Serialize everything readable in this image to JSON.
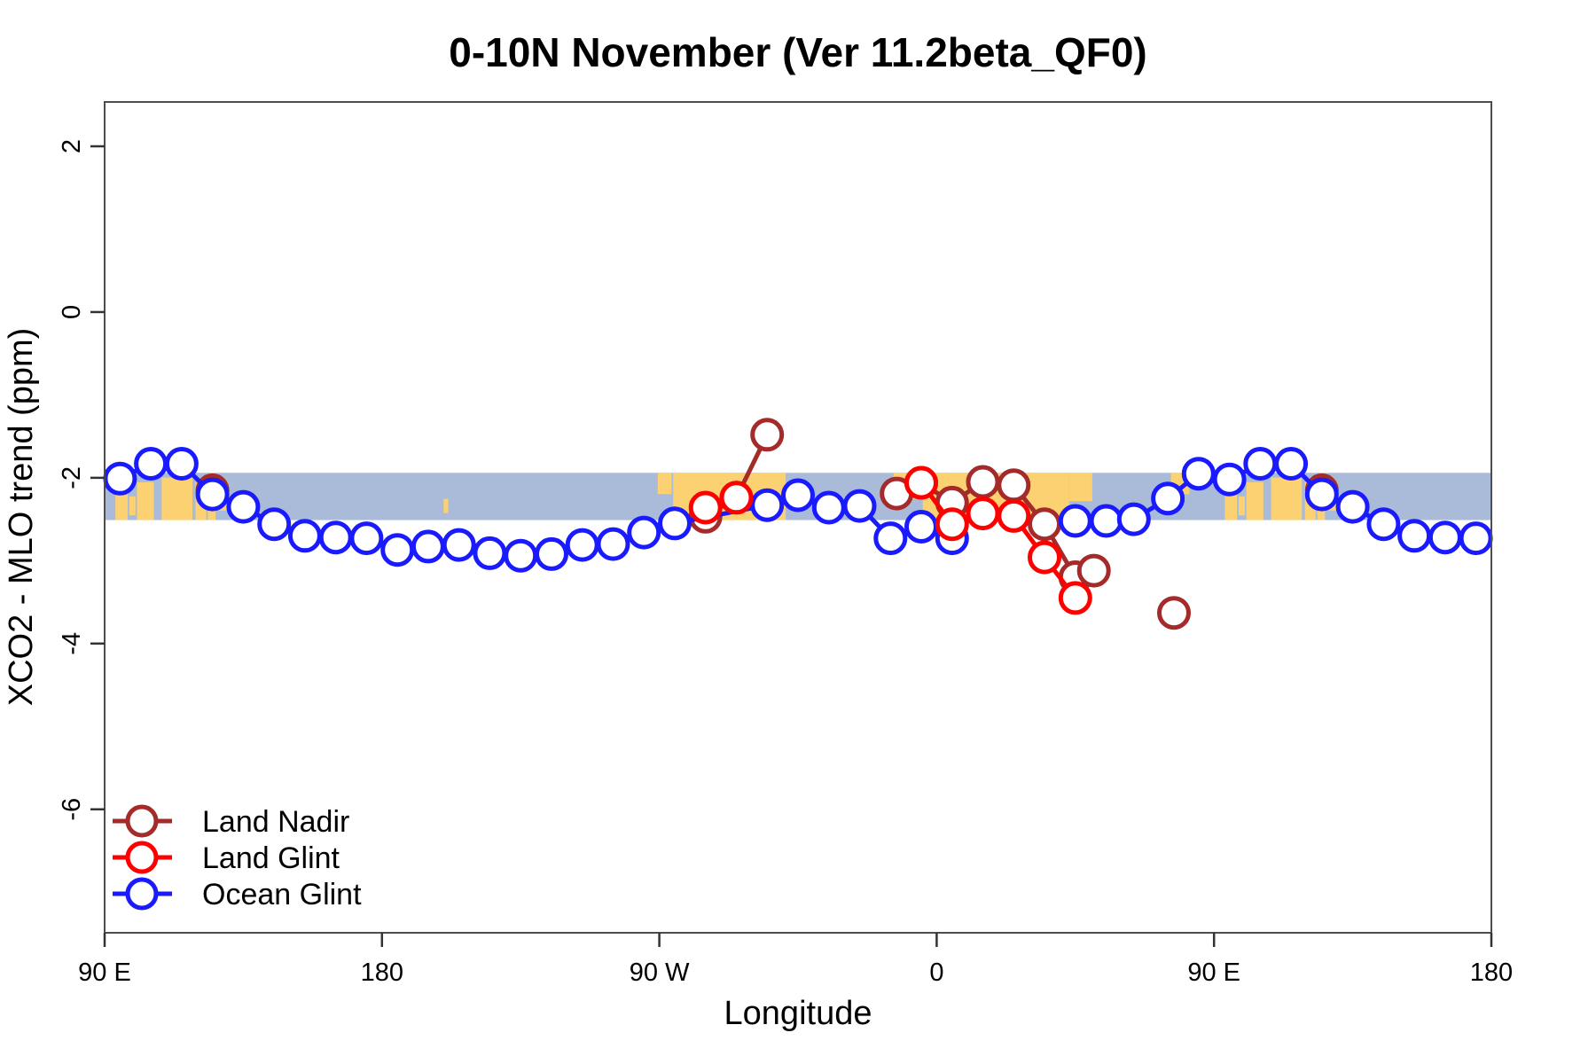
{
  "title": "0-10N November (Ver 11.2beta_QF0)",
  "xlabel": "Longitude",
  "ylabel": "XCO2 - MLO trend (ppm)",
  "chart_data": {
    "type": "line",
    "title": "0-10N November (Ver 11.2beta_QF0)",
    "xlabel": "Longitude",
    "ylabel": "XCO2 - MLO trend (ppm)",
    "xlim": [
      90,
      540
    ],
    "ylim": [
      -7.49,
      2.535
    ],
    "grid": false,
    "legend_position": "bottom-left-inside",
    "x_ticks": [
      {
        "v": 90,
        "label": "90 E"
      },
      {
        "v": 180,
        "label": "180"
      },
      {
        "v": 270,
        "label": "90 W"
      },
      {
        "v": 360,
        "label": "0"
      },
      {
        "v": 450,
        "label": "90 E"
      },
      {
        "v": 540,
        "label": "180"
      }
    ],
    "y_ticks": [
      {
        "v": 2,
        "label": "2"
      },
      {
        "v": 0,
        "label": "0"
      },
      {
        "v": -2,
        "label": "-2"
      },
      {
        "v": -4,
        "label": "-4"
      },
      {
        "v": -6,
        "label": "-6"
      }
    ],
    "map_band": {
      "value_top": -1.94,
      "value_bottom": -2.51,
      "ocean_color": "#A9BBD8",
      "land_color": "#FBD171",
      "land_patches": [
        [
          93.5,
          97.5,
          0.25,
          1
        ],
        [
          98,
          100,
          0.5,
          0.9
        ],
        [
          100.5,
          106,
          0.2,
          1
        ],
        [
          108.5,
          118.5,
          0.1,
          1
        ],
        [
          119.5,
          123,
          0.2,
          1
        ],
        [
          123.5,
          126,
          0.35,
          1
        ],
        [
          127,
          130,
          0.2,
          0.8
        ],
        [
          200,
          201.5,
          0.55,
          0.85
        ],
        [
          269.5,
          274,
          0,
          0.45
        ],
        [
          274.5,
          311,
          0,
          1
        ],
        [
          346,
          356,
          0,
          0.55
        ],
        [
          355.5,
          403,
          0,
          1
        ],
        [
          403,
          410.5,
          0,
          0.6
        ],
        [
          436,
          442,
          0,
          0.45
        ],
        [
          453.5,
          457.5,
          0.25,
          1
        ],
        [
          458,
          460,
          0.5,
          0.9
        ],
        [
          460.5,
          466,
          0.2,
          1
        ],
        [
          468.5,
          478.5,
          0.1,
          1
        ],
        [
          479.5,
          483,
          0.2,
          1
        ],
        [
          483.5,
          486,
          0.35,
          1
        ],
        [
          487,
          490,
          0.2,
          0.8
        ]
      ]
    },
    "series": [
      {
        "name": "Land Nadir",
        "color": "#A52A2A",
        "marker": "circle",
        "z": 0,
        "segments": [
          [
            [
              125,
              -2.15
            ]
          ],
          [
            [
              285,
              -2.47
            ],
            [
              295,
              -2.24
            ],
            [
              305,
              -1.48
            ]
          ],
          [
            [
              347,
              -2.19
            ],
            [
              355,
              -2.06
            ],
            [
              365,
              -2.3
            ],
            [
              375,
              -2.05
            ],
            [
              385,
              -2.09
            ],
            [
              395,
              -2.56
            ],
            [
              405,
              -3.2
            ],
            [
              411,
              -3.12
            ]
          ],
          [
            [
              437,
              -3.63
            ]
          ],
          [
            [
              485,
              -2.15
            ]
          ]
        ]
      },
      {
        "name": "Land Glint",
        "color": "#FF0000",
        "marker": "circle",
        "z": 2,
        "segments": [
          [
            [
              285,
              -2.36
            ],
            [
              295,
              -2.24
            ]
          ],
          [
            [
              355,
              -2.06
            ],
            [
              365,
              -2.56
            ],
            [
              375,
              -2.43
            ],
            [
              385,
              -2.46
            ],
            [
              395,
              -2.96
            ],
            [
              405,
              -3.45
            ]
          ]
        ]
      },
      {
        "name": "Ocean Glint",
        "color": "#1A1AFF",
        "marker": "circle",
        "z": 1,
        "segments": [
          [
            [
              95,
              -2.01
            ],
            [
              105,
              -1.83
            ],
            [
              115,
              -1.83
            ],
            [
              125,
              -2.2
            ],
            [
              135,
              -2.35
            ],
            [
              145,
              -2.56
            ],
            [
              155,
              -2.7
            ],
            [
              165,
              -2.72
            ],
            [
              175,
              -2.73
            ],
            [
              185,
              -2.87
            ],
            [
              195,
              -2.83
            ],
            [
              205,
              -2.81
            ],
            [
              215,
              -2.91
            ],
            [
              225,
              -2.94
            ],
            [
              235,
              -2.92
            ],
            [
              245,
              -2.81
            ],
            [
              255,
              -2.8
            ],
            [
              265,
              -2.66
            ],
            [
              275,
              -2.55
            ],
            [
              305,
              -2.33
            ],
            [
              315,
              -2.21
            ],
            [
              325,
              -2.36
            ],
            [
              335,
              -2.34
            ],
            [
              345,
              -2.73
            ],
            [
              355,
              -2.59
            ],
            [
              365,
              -2.73
            ]
          ],
          [
            [
              405,
              -2.52
            ],
            [
              415,
              -2.52
            ],
            [
              424,
              -2.5
            ],
            [
              435,
              -2.25
            ],
            [
              445,
              -1.95
            ],
            [
              455,
              -2.02
            ],
            [
              465,
              -1.83
            ],
            [
              475,
              -1.83
            ],
            [
              485,
              -2.2
            ],
            [
              495,
              -2.35
            ],
            [
              505,
              -2.56
            ],
            [
              515,
              -2.7
            ],
            [
              525,
              -2.72
            ],
            [
              535,
              -2.73
            ]
          ]
        ]
      }
    ],
    "style": {
      "line_width": 5,
      "marker_radius": 16.5,
      "marker_stroke": 5,
      "marker_fill": "#FFFFFF",
      "box_color": "#4D4D4D",
      "tick_color": "#333333"
    }
  }
}
